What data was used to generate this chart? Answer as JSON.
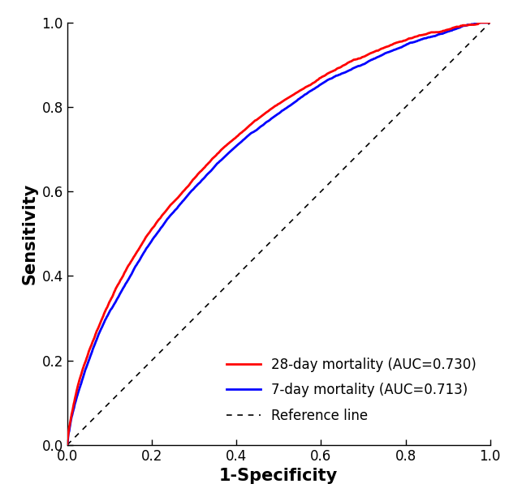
{
  "title": "",
  "xlabel": "1-Specificity",
  "ylabel": "Sensitivity",
  "xlim": [
    0.0,
    1.0
  ],
  "ylim": [
    0.0,
    1.0
  ],
  "xticks": [
    0.0,
    0.2,
    0.4,
    0.6,
    0.8,
    1.0
  ],
  "yticks": [
    0.0,
    0.2,
    0.4,
    0.6,
    0.8,
    1.0
  ],
  "line1_color": "#FF0000",
  "line1_label": "28-day mortality (AUC=0.730)",
  "line2_color": "#0000FF",
  "line2_label": "7-day mortality (AUC=0.713)",
  "ref_color": "#000000",
  "ref_label": "Reference line",
  "line_width": 2.0,
  "ref_linewidth": 1.2,
  "legend_fontsize": 12,
  "axis_label_fontsize": 15,
  "tick_fontsize": 12,
  "background_color": "#ffffff",
  "auc1": 0.73,
  "auc2": 0.713
}
